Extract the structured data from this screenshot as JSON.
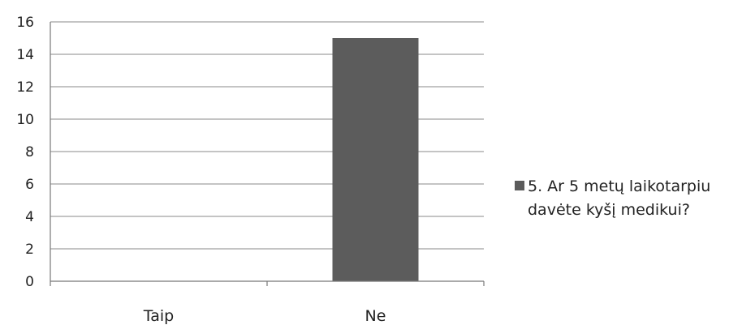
{
  "chart_data": {
    "type": "bar",
    "categories": [
      "Taip",
      "Ne"
    ],
    "series": [
      {
        "name": "5. Ar 5 metų laikotarpiu davėte kyšį medikui?",
        "values": [
          0,
          15
        ],
        "color": "#5c5c5c"
      }
    ],
    "ylim": [
      0,
      16
    ],
    "yticks": [
      "0",
      "2",
      "4",
      "6",
      "8",
      "10",
      "12",
      "14",
      "16"
    ],
    "grid": true,
    "legend_position": "right"
  },
  "legend": {
    "line1": "5. Ar 5 metų laikotarpiu",
    "line2": "davėte kyšį medikui?"
  }
}
